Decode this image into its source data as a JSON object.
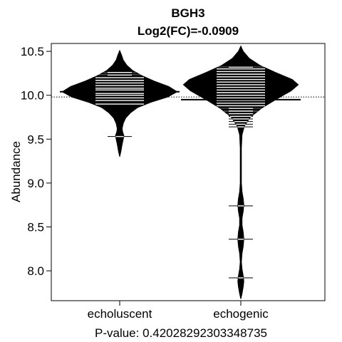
{
  "chart_data": {
    "type": "beanplot",
    "title": "BGH3",
    "subtitle": "Log2(FC)=-0.0909",
    "ylabel": "Abundance",
    "xlabel": "P-value: 0.42028292303348735",
    "ylim": [
      7.66,
      10.59
    ],
    "yticks": [
      "8.0",
      "8.5",
      "9.0",
      "9.5",
      "10.0",
      "10.5"
    ],
    "overall_mean": 9.98,
    "categories": [
      "echoluscent",
      "echogenic"
    ],
    "groups": [
      {
        "mean": 10.04,
        "density": [
          [
            9.3,
            0.0
          ],
          [
            9.36,
            0.02
          ],
          [
            9.44,
            0.04
          ],
          [
            9.5,
            0.06
          ],
          [
            9.54,
            0.07
          ],
          [
            9.58,
            0.05
          ],
          [
            9.62,
            0.04
          ],
          [
            9.68,
            0.06
          ],
          [
            9.74,
            0.1
          ],
          [
            9.8,
            0.18
          ],
          [
            9.86,
            0.3
          ],
          [
            9.92,
            0.52
          ],
          [
            9.98,
            0.8
          ],
          [
            10.04,
            0.96
          ],
          [
            10.1,
            0.82
          ],
          [
            10.16,
            0.58
          ],
          [
            10.22,
            0.38
          ],
          [
            10.28,
            0.22
          ],
          [
            10.34,
            0.12
          ],
          [
            10.4,
            0.06
          ],
          [
            10.46,
            0.03
          ],
          [
            10.51,
            0.0
          ]
        ],
        "observations": [
          9.53,
          9.9,
          9.94,
          9.97,
          10.0,
          10.02,
          10.04,
          10.06,
          10.08,
          10.11,
          10.14,
          10.17,
          10.2,
          10.23,
          10.26
        ]
      },
      {
        "mean": 9.95,
        "density": [
          [
            7.68,
            0.0
          ],
          [
            7.74,
            0.02
          ],
          [
            7.82,
            0.04
          ],
          [
            7.88,
            0.05
          ],
          [
            7.94,
            0.04
          ],
          [
            8.02,
            0.02
          ],
          [
            8.1,
            0.01
          ],
          [
            8.2,
            0.02
          ],
          [
            8.28,
            0.04
          ],
          [
            8.36,
            0.05
          ],
          [
            8.44,
            0.04
          ],
          [
            8.52,
            0.02
          ],
          [
            8.6,
            0.02
          ],
          [
            8.68,
            0.04
          ],
          [
            8.75,
            0.05
          ],
          [
            8.82,
            0.04
          ],
          [
            8.9,
            0.02
          ],
          [
            9.0,
            0.01
          ],
          [
            9.2,
            0.01
          ],
          [
            9.4,
            0.01
          ],
          [
            9.55,
            0.02
          ],
          [
            9.65,
            0.06
          ],
          [
            9.75,
            0.16
          ],
          [
            9.85,
            0.34
          ],
          [
            9.95,
            0.58
          ],
          [
            10.05,
            0.84
          ],
          [
            10.12,
            0.96
          ],
          [
            10.18,
            0.86
          ],
          [
            10.26,
            0.58
          ],
          [
            10.34,
            0.32
          ],
          [
            10.42,
            0.14
          ],
          [
            10.5,
            0.04
          ],
          [
            10.56,
            0.0
          ]
        ],
        "observations": [
          7.92,
          8.36,
          8.74,
          9.64,
          9.67,
          9.7,
          9.73,
          9.76,
          9.79,
          9.82,
          9.85,
          9.88,
          9.91,
          9.94,
          9.97,
          10.0,
          10.03,
          10.06,
          10.09,
          10.12,
          10.15,
          10.18,
          10.21,
          10.24,
          10.27,
          10.3,
          10.32
        ]
      }
    ]
  }
}
